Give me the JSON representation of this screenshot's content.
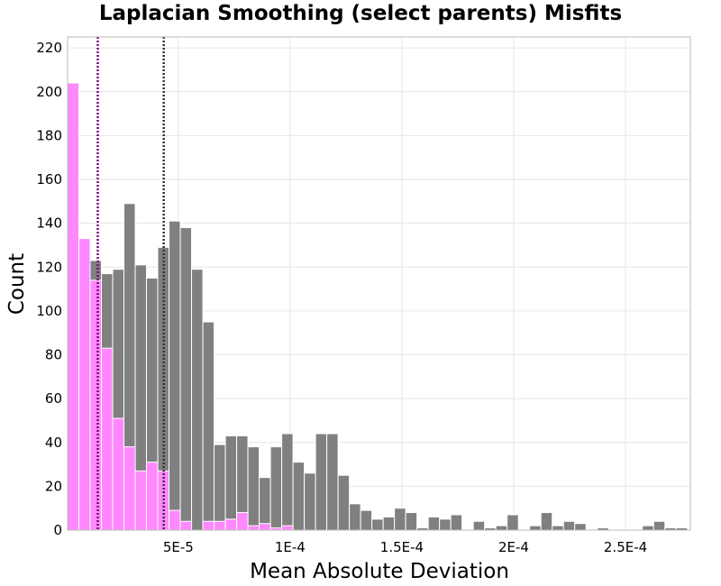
{
  "chart_data": {
    "type": "bar",
    "title": "Laplacian Smoothing (select parents) Misfits",
    "xlabel": "Mean Absolute Deviation",
    "ylabel": "Count",
    "xlim": [
      5e-07,
      0.000279
    ],
    "ylim": [
      0,
      225
    ],
    "bin_width": 5.04e-06,
    "x_ticks": [
      5e-05,
      0.0001,
      0.00015,
      0.0002,
      0.00025
    ],
    "x_tick_labels": [
      "5E-5",
      "1E-4",
      "1.5E-4",
      "2E-4",
      "2.5E-4"
    ],
    "y_ticks": [
      0,
      20,
      40,
      60,
      80,
      100,
      120,
      140,
      160,
      180,
      200,
      220
    ],
    "grid": true,
    "legend": "none",
    "colors": {
      "total": "#808080",
      "selected": "#ff88ff",
      "mean_selected_line": "#800080",
      "mean_total_line": "#333333"
    },
    "vlines": [
      {
        "x": 1.4e-05,
        "color": "#800080"
      },
      {
        "x": 4.35e-05,
        "color": "#333333"
      }
    ],
    "series": [
      {
        "values": [
          204,
          133,
          123,
          117,
          119,
          149,
          121,
          115,
          129,
          141,
          138,
          119,
          95,
          39,
          43,
          43,
          38,
          24,
          38,
          44,
          31,
          26,
          44,
          44,
          25,
          12,
          9,
          5,
          6,
          10,
          8,
          1,
          6,
          5,
          7,
          0,
          4,
          1,
          2,
          7,
          0,
          2,
          8,
          2,
          4,
          3,
          0,
          1,
          0,
          0,
          0,
          2,
          4,
          1,
          1
        ]
      },
      {
        "values": [
          204,
          133,
          114,
          83,
          51,
          38,
          27,
          31,
          27,
          9,
          4,
          0,
          4,
          4,
          5,
          8,
          2,
          3,
          1,
          2,
          0,
          0,
          0,
          0,
          0,
          0,
          0,
          0,
          0,
          0,
          0,
          0,
          0,
          0,
          0,
          0,
          0,
          0,
          0,
          0,
          0,
          0,
          0,
          0,
          0,
          0,
          0,
          0,
          0,
          0,
          0,
          0,
          0,
          0,
          0
        ]
      }
    ]
  }
}
